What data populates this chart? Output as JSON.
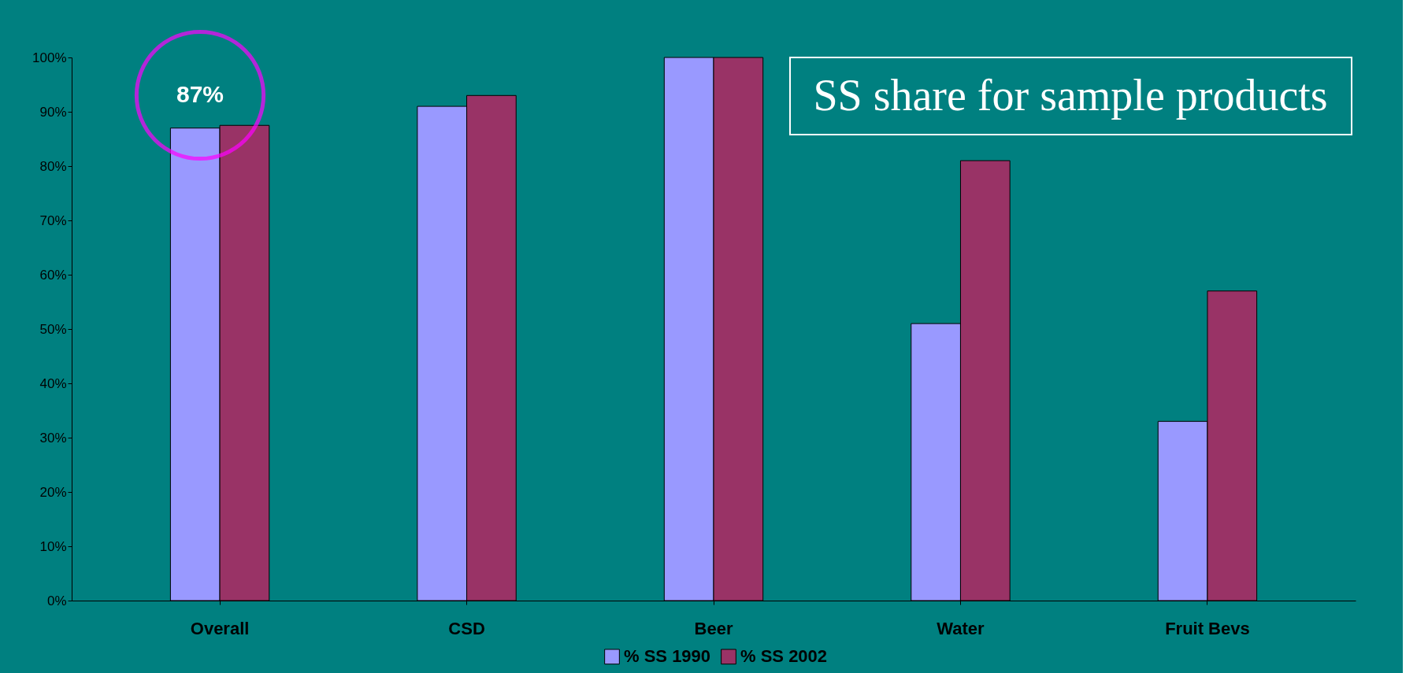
{
  "chart_data": {
    "type": "bar",
    "title": "SS share for sample products",
    "categories": [
      "Overall",
      "CSD",
      "Beer",
      "Water",
      "Fruit Bevs"
    ],
    "series": [
      {
        "name": "% SS 1990",
        "color": "#9999ff",
        "values": [
          87,
          91,
          100,
          51,
          33
        ]
      },
      {
        "name": "% SS 2002",
        "color": "#993366",
        "values": [
          87.5,
          93,
          100,
          81,
          57
        ]
      }
    ],
    "ylim": [
      0,
      100
    ],
    "yticks": [
      {
        "value": 0,
        "label": "0%"
      },
      {
        "value": 10,
        "label": "10%"
      },
      {
        "value": 20,
        "label": "20%"
      },
      {
        "value": 30,
        "label": "30%"
      },
      {
        "value": 40,
        "label": "40%"
      },
      {
        "value": 50,
        "label": "50%"
      },
      {
        "value": 60,
        "label": "60%"
      },
      {
        "value": 70,
        "label": "70%"
      },
      {
        "value": 80,
        "label": "80%"
      },
      {
        "value": 90,
        "label": "90%"
      },
      {
        "value": 100,
        "label": "100%"
      }
    ],
    "annotations": [
      "87%"
    ],
    "grid": false,
    "legend": "bottom"
  }
}
